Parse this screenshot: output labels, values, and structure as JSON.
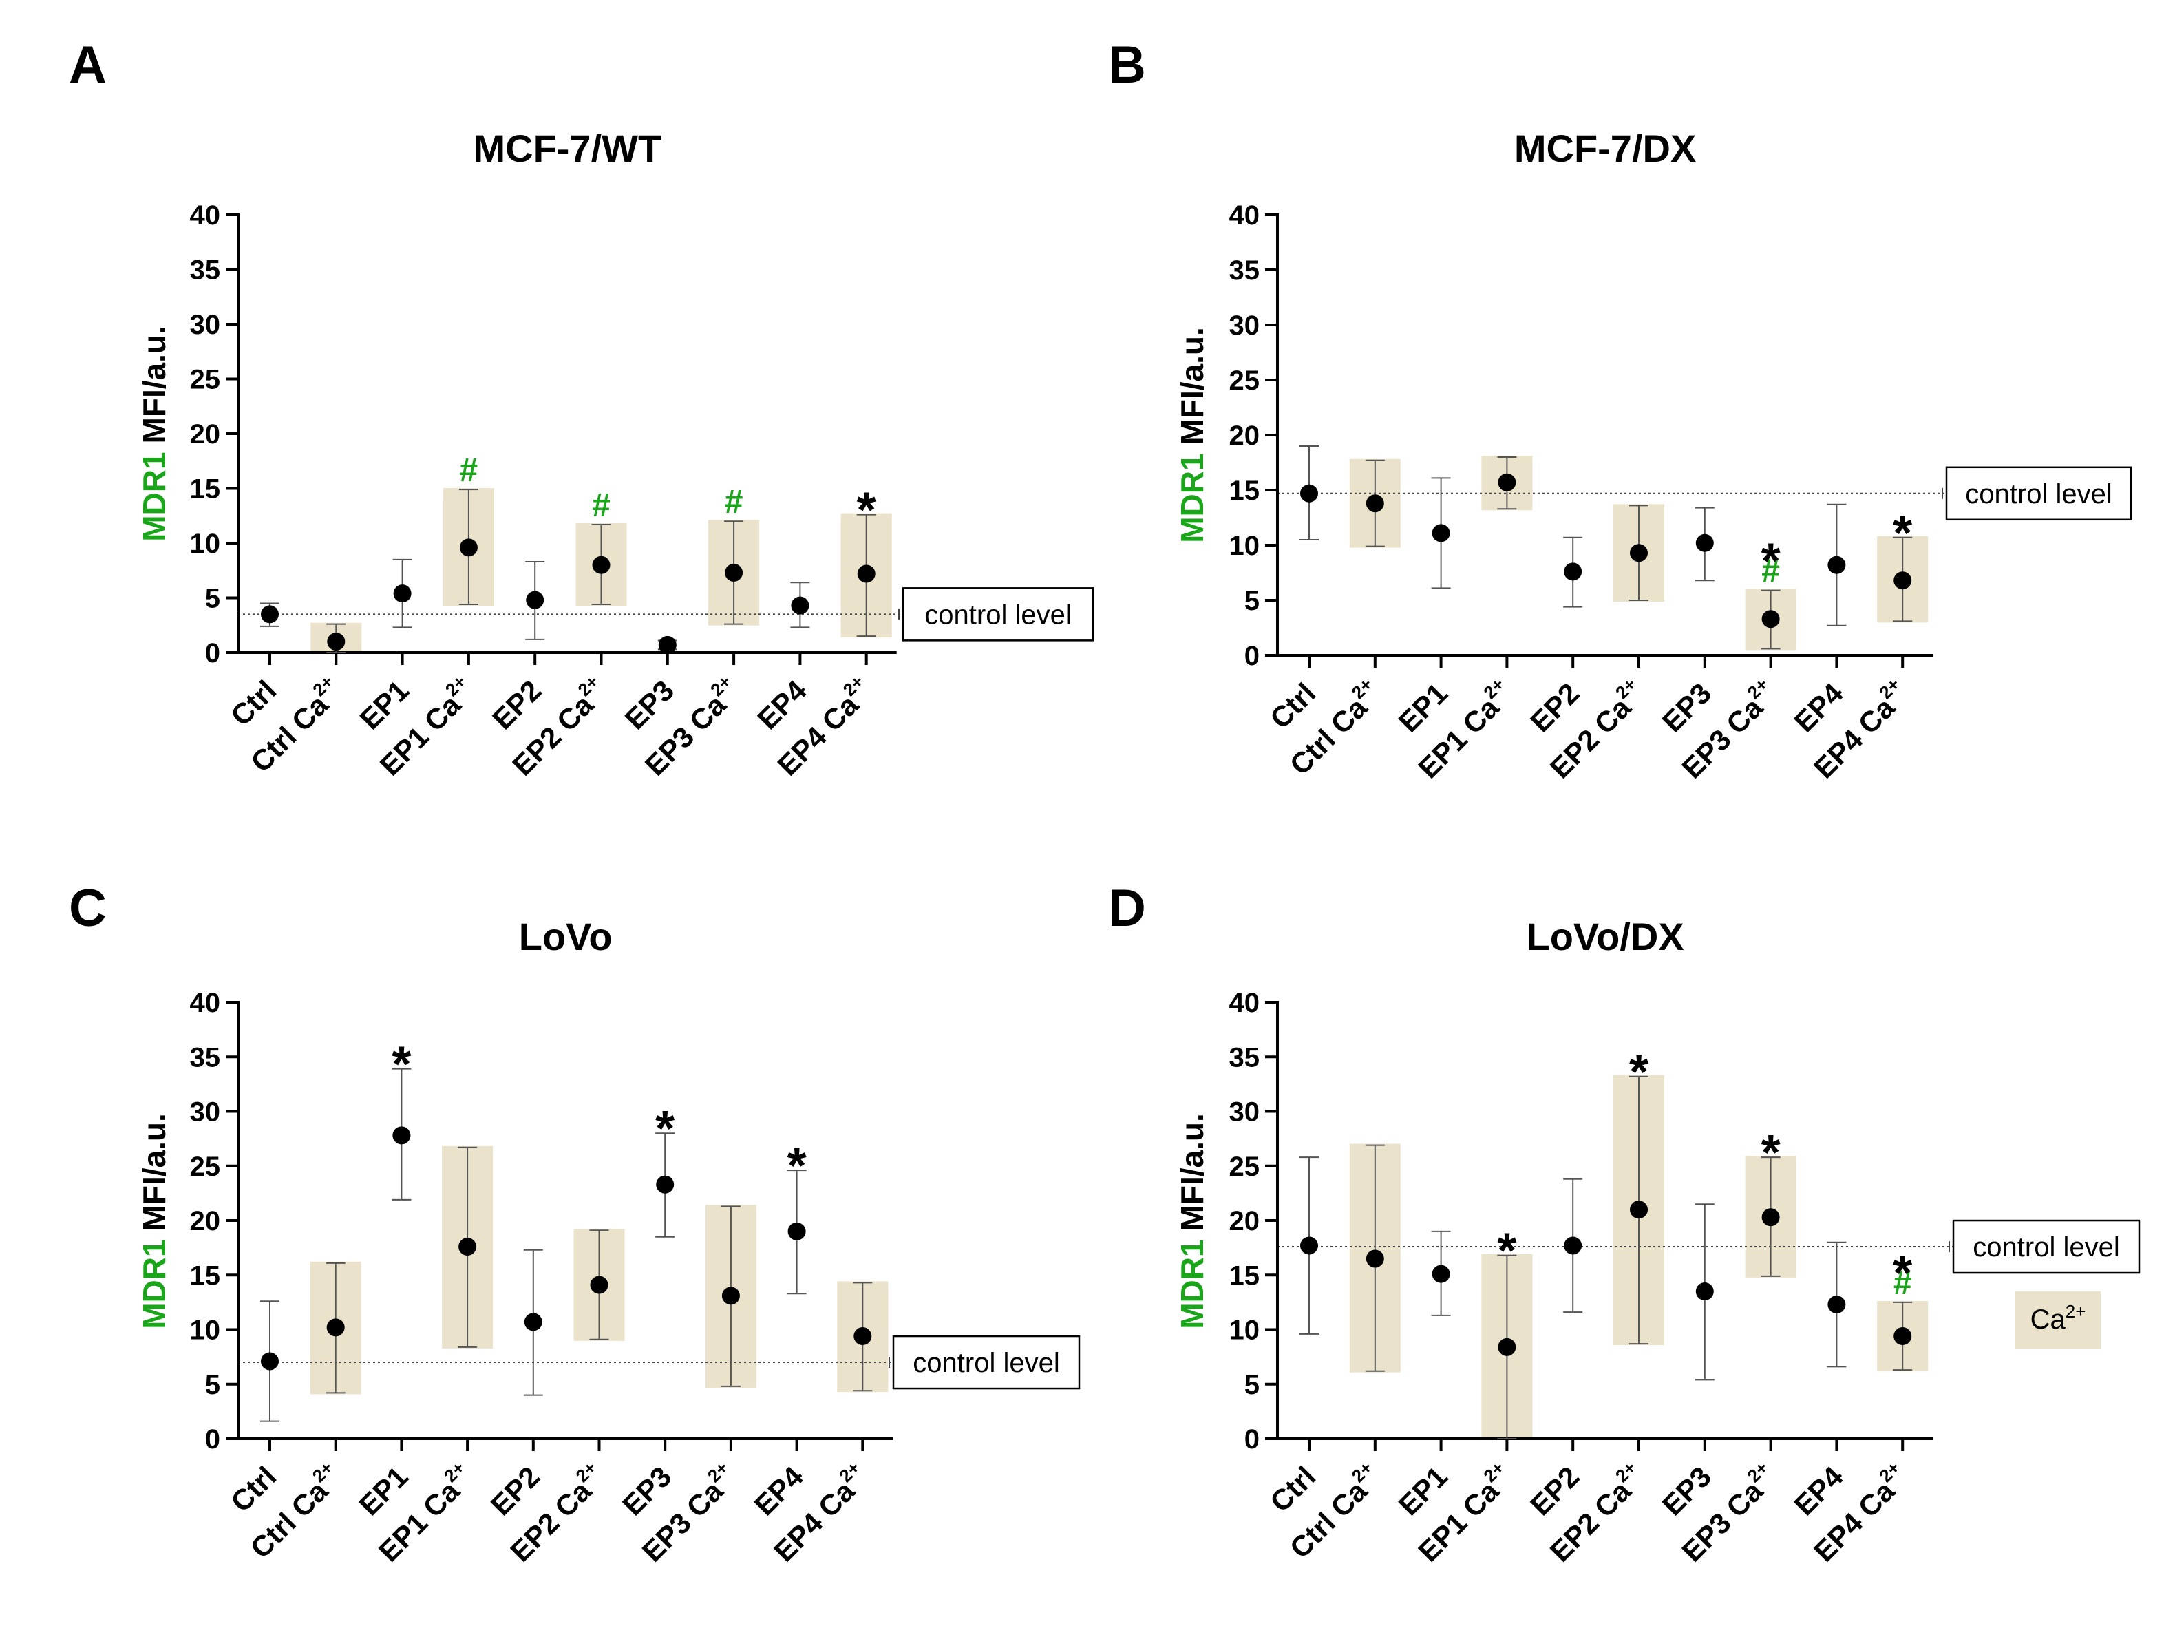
{
  "colors": {
    "accent_green": "#1aa51a",
    "ca_shade": "#eae2ca",
    "axis": "#000000"
  },
  "legend": {
    "swatch_label_base": "Ca",
    "swatch_label_sup": "2+"
  },
  "chart_data": [
    {
      "type": "scatter",
      "panel": "A",
      "title": "MCF-7/WT",
      "ylabel_marker": "MDR1",
      "ylabel_unit": "MFI/a.u.",
      "ylim": [
        0,
        40
      ],
      "yticks": [
        "0",
        "5",
        "10",
        "15",
        "20",
        "25",
        "30",
        "35",
        "40"
      ],
      "categories": [
        {
          "base": "Ctrl",
          "sup": ""
        },
        {
          "base": "Ctrl Ca",
          "sup": "2+"
        },
        {
          "base": "EP1",
          "sup": ""
        },
        {
          "base": "EP1 Ca",
          "sup": "2+"
        },
        {
          "base": "EP2",
          "sup": ""
        },
        {
          "base": "EP2 Ca",
          "sup": "2+"
        },
        {
          "base": "EP3",
          "sup": ""
        },
        {
          "base": "EP3 Ca",
          "sup": "2+"
        },
        {
          "base": "EP4",
          "sup": ""
        },
        {
          "base": "EP4 Ca",
          "sup": "2+"
        }
      ],
      "means": [
        3.5,
        1.0,
        5.4,
        9.6,
        4.8,
        8.0,
        0.7,
        7.3,
        4.3,
        7.2
      ],
      "err_low": [
        2.4,
        0.0,
        2.3,
        4.4,
        1.2,
        4.4,
        0.3,
        2.6,
        2.3,
        1.5
      ],
      "err_high": [
        4.5,
        2.6,
        8.5,
        14.9,
        8.3,
        11.7,
        1.1,
        12.0,
        6.4,
        12.6
      ],
      "ca_shaded": [
        false,
        true,
        false,
        true,
        false,
        true,
        false,
        true,
        false,
        true
      ],
      "star": [
        "",
        "",
        "",
        "",
        "",
        "",
        "",
        "",
        "",
        "*"
      ],
      "hash": [
        "",
        "",
        "",
        "#",
        "",
        "#",
        "",
        "#",
        "",
        ""
      ],
      "control_level": 3.5,
      "control_label": "control level"
    },
    {
      "type": "scatter",
      "panel": "B",
      "title": "MCF-7/DX",
      "ylabel_marker": "MDR1",
      "ylabel_unit": "MFI/a.u.",
      "ylim": [
        0,
        40
      ],
      "yticks": [
        "0",
        "5",
        "10",
        "15",
        "20",
        "25",
        "30",
        "35",
        "40"
      ],
      "categories": [
        {
          "base": "Ctrl",
          "sup": ""
        },
        {
          "base": "Ctrl Ca",
          "sup": "2+"
        },
        {
          "base": "EP1",
          "sup": ""
        },
        {
          "base": "EP1 Ca",
          "sup": "2+"
        },
        {
          "base": "EP2",
          "sup": ""
        },
        {
          "base": "EP2 Ca",
          "sup": "2+"
        },
        {
          "base": "EP3",
          "sup": ""
        },
        {
          "base": "EP3 Ca",
          "sup": "2+"
        },
        {
          "base": "EP4",
          "sup": ""
        },
        {
          "base": "EP4 Ca",
          "sup": "2+"
        }
      ],
      "means": [
        14.7,
        13.8,
        11.1,
        15.7,
        7.6,
        9.3,
        10.2,
        3.3,
        8.2,
        6.8
      ],
      "err_low": [
        10.5,
        9.9,
        6.1,
        13.3,
        4.4,
        5.0,
        6.8,
        0.6,
        2.7,
        3.1
      ],
      "err_high": [
        19.0,
        17.7,
        16.1,
        18.0,
        10.7,
        13.6,
        13.4,
        5.9,
        13.7,
        10.7
      ],
      "ca_shaded": [
        false,
        true,
        false,
        true,
        false,
        true,
        false,
        true,
        false,
        true
      ],
      "star": [
        "",
        "",
        "",
        "",
        "",
        "",
        "",
        "*",
        "",
        "*"
      ],
      "hash": [
        "",
        "",
        "",
        "",
        "",
        "",
        "",
        "#",
        "",
        ""
      ],
      "control_level": 14.7,
      "control_label": "control level"
    },
    {
      "type": "scatter",
      "panel": "C",
      "title": "LoVo",
      "ylabel_marker": "MDR1",
      "ylabel_unit": "MFI/a.u.",
      "ylim": [
        0,
        40
      ],
      "yticks": [
        "0",
        "5",
        "10",
        "15",
        "20",
        "25",
        "30",
        "35",
        "40"
      ],
      "categories": [
        {
          "base": "Ctrl",
          "sup": ""
        },
        {
          "base": "Ctrl Ca",
          "sup": "2+"
        },
        {
          "base": "EP1",
          "sup": ""
        },
        {
          "base": "EP1 Ca",
          "sup": "2+"
        },
        {
          "base": "EP2",
          "sup": ""
        },
        {
          "base": "EP2 Ca",
          "sup": "2+"
        },
        {
          "base": "EP3",
          "sup": ""
        },
        {
          "base": "EP3 Ca",
          "sup": "2+"
        },
        {
          "base": "EP4",
          "sup": ""
        },
        {
          "base": "EP4 Ca",
          "sup": "2+"
        }
      ],
      "means": [
        7.1,
        10.2,
        27.8,
        17.6,
        10.7,
        14.1,
        23.3,
        13.1,
        19.0,
        9.4
      ],
      "err_low": [
        1.6,
        4.2,
        21.9,
        8.4,
        4.0,
        9.1,
        18.5,
        4.8,
        13.3,
        4.4
      ],
      "err_high": [
        12.6,
        16.1,
        33.9,
        26.7,
        17.3,
        19.1,
        28.0,
        21.3,
        24.6,
        14.3
      ],
      "ca_shaded": [
        false,
        true,
        false,
        true,
        false,
        true,
        false,
        true,
        false,
        true
      ],
      "star": [
        "",
        "",
        "*",
        "",
        "",
        "",
        "*",
        "",
        "*",
        ""
      ],
      "hash": [
        "",
        "",
        "",
        "",
        "",
        "",
        "",
        "",
        "",
        ""
      ],
      "control_level": 7.0,
      "control_label": "control level"
    },
    {
      "type": "scatter",
      "panel": "D",
      "title": "LoVo/DX",
      "ylabel_marker": "MDR1",
      "ylabel_unit": "MFI/a.u.",
      "ylim": [
        0,
        40
      ],
      "yticks": [
        "0",
        "5",
        "10",
        "15",
        "20",
        "25",
        "30",
        "35",
        "40"
      ],
      "categories": [
        {
          "base": "Ctrl",
          "sup": ""
        },
        {
          "base": "Ctrl Ca",
          "sup": "2+"
        },
        {
          "base": "EP1",
          "sup": ""
        },
        {
          "base": "EP1 Ca",
          "sup": "2+"
        },
        {
          "base": "EP2",
          "sup": ""
        },
        {
          "base": "EP2 Ca",
          "sup": "2+"
        },
        {
          "base": "EP3",
          "sup": ""
        },
        {
          "base": "EP3 Ca",
          "sup": "2+"
        },
        {
          "base": "EP4",
          "sup": ""
        },
        {
          "base": "EP4 Ca",
          "sup": "2+"
        }
      ],
      "means": [
        17.7,
        16.5,
        15.1,
        8.4,
        17.7,
        21.0,
        13.5,
        20.3,
        12.3,
        9.4
      ],
      "err_low": [
        9.6,
        6.2,
        11.3,
        0.0,
        11.6,
        8.7,
        5.4,
        14.9,
        6.6,
        6.3
      ],
      "err_high": [
        25.8,
        26.9,
        19.0,
        16.8,
        23.8,
        33.2,
        21.5,
        25.8,
        18.0,
        12.5
      ],
      "ca_shaded": [
        false,
        true,
        false,
        true,
        false,
        true,
        false,
        true,
        false,
        true
      ],
      "star": [
        "",
        "",
        "",
        "*",
        "",
        "*",
        "",
        "*",
        "",
        "*"
      ],
      "hash": [
        "",
        "",
        "",
        "",
        "",
        "",
        "",
        "",
        "",
        "#"
      ],
      "control_level": 17.6,
      "control_label": "control level"
    }
  ]
}
